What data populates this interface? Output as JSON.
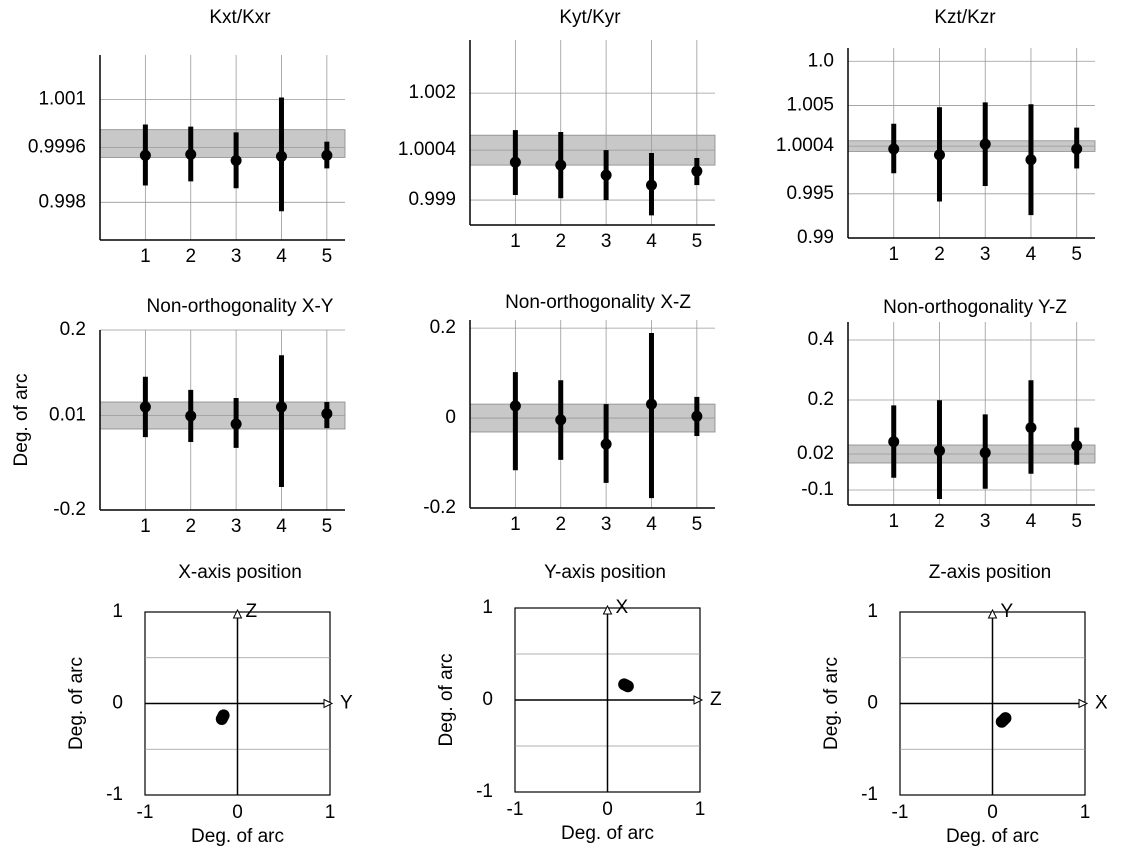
{
  "chart_data": [
    {
      "type": "errorbar",
      "title": "Kxt/Kxr",
      "x": [
        1,
        2,
        3,
        4,
        5
      ],
      "xlim": [
        0,
        5.4
      ],
      "xticks": [
        1,
        2,
        3,
        4,
        5
      ],
      "values": [
        0.99937,
        0.9994,
        0.99922,
        0.99934,
        0.99937
      ],
      "lower": [
        0.99849,
        0.99861,
        0.99841,
        0.99774,
        0.99899
      ],
      "upper": [
        1.00027,
        1.00021,
        1.00004,
        1.00106,
        0.99977
      ],
      "band": [
        0.99931,
        1.00012
      ],
      "ylim": [
        0.9969,
        1.0023
      ],
      "yticks": [
        0.998,
        0.9996,
        1.001
      ],
      "grid": true,
      "color": "#000000",
      "band_color": "#c8c8c8"
    },
    {
      "type": "errorbar",
      "title": "Kyt/Kyr",
      "x": [
        1,
        2,
        3,
        4,
        5
      ],
      "xlim": [
        0,
        5.4
      ],
      "xticks": [
        1,
        2,
        3,
        4,
        5
      ],
      "values": [
        1.00006,
        0.99998,
        0.9997,
        0.99942,
        0.99981
      ],
      "lower": [
        0.99914,
        0.99905,
        0.999,
        0.99857,
        0.99942
      ],
      "upper": [
        1.00096,
        1.00091,
        1.0004,
        1.00032,
        1.00018
      ],
      "band": [
        0.99998,
        1.00082
      ],
      "ylim": [
        0.9983,
        1.00349
      ],
      "yticks": [
        0.999,
        1.0004,
        1.002
      ],
      "grid": true,
      "color": "#000000",
      "band_color": "#c8c8c8"
    },
    {
      "type": "errorbar",
      "title": "Kzt/Kzr",
      "x": [
        1,
        2,
        3,
        4,
        5
      ],
      "xlim": [
        0,
        5.4
      ],
      "xticks": [
        1,
        2,
        3,
        4,
        5
      ],
      "values": [
        1.00007,
        0.99941,
        1.00062,
        0.99886,
        1.00007
      ],
      "lower": [
        0.99732,
        0.99413,
        0.99589,
        0.99259,
        0.99787
      ],
      "upper": [
        1.00293,
        1.0048,
        1.00535,
        1.00513,
        1.00249
      ],
      "band": [
        0.9998,
        1.001
      ],
      "ylim": [
        0.99,
        1.0115
      ],
      "yticks": [
        0.99,
        0.995,
        1.0004,
        1.005,
        {
          "value": 1.01,
          "label": "1.0"
        }
      ],
      "grid": true,
      "color": "#000000",
      "band_color": "#c8c8c8"
    },
    {
      "type": "errorbar",
      "title": "Non-orthogonality X-Y",
      "ylabel": "Deg. of arc",
      "x": [
        1,
        2,
        3,
        4,
        5
      ],
      "xlim": [
        0,
        5.4
      ],
      "xticks": [
        1,
        2,
        3,
        4,
        5
      ],
      "values": [
        0.029,
        0.009,
        -0.009,
        0.029,
        0.014
      ],
      "lower": [
        -0.038,
        -0.049,
        -0.062,
        -0.149,
        -0.018
      ],
      "upper": [
        0.096,
        0.067,
        0.049,
        0.144,
        0.04
      ],
      "band": [
        -0.02,
        0.04
      ],
      "ylim": [
        -0.2,
        0.2
      ],
      "yticks": [
        -0.2,
        0.01,
        0.2
      ],
      "grid": true,
      "color": "#000000",
      "band_color": "#c8c8c8"
    },
    {
      "type": "errorbar",
      "title": "Non-orthogonality X-Z",
      "x": [
        1,
        2,
        3,
        4,
        5
      ],
      "xlim": [
        0,
        5.4
      ],
      "xticks": [
        1,
        2,
        3,
        4,
        5
      ],
      "values": [
        0.027,
        -0.004,
        -0.058,
        0.031,
        0.004
      ],
      "lower": [
        -0.116,
        -0.093,
        -0.144,
        -0.178,
        -0.04
      ],
      "upper": [
        0.102,
        0.084,
        0.031,
        0.189,
        0.047
      ],
      "band": [
        -0.031,
        0.031
      ],
      "ylim": [
        -0.2,
        0.218
      ],
      "yticks": [
        -0.2,
        0,
        0.2
      ],
      "grid": true,
      "color": "#000000",
      "band_color": "#c8c8c8"
    },
    {
      "type": "errorbar",
      "title": "Non-orthogonality Y-Z",
      "x": [
        1,
        2,
        3,
        4,
        5
      ],
      "xlim": [
        0,
        5.4
      ],
      "xticks": [
        1,
        2,
        3,
        4,
        5
      ],
      "values": [
        0.061,
        0.031,
        0.024,
        0.108,
        0.048
      ],
      "lower": [
        -0.059,
        -0.13,
        -0.096,
        -0.046,
        -0.016
      ],
      "upper": [
        0.182,
        0.199,
        0.152,
        0.266,
        0.108
      ],
      "band": [
        -0.01,
        0.05
      ],
      "ylim": [
        -0.15,
        0.46
      ],
      "yticks": [
        -0.1,
        0.02,
        0.2,
        0.4
      ],
      "grid": true,
      "color": "#000000",
      "band_color": "#c8c8c8"
    },
    {
      "type": "scatter",
      "title": "X-axis position",
      "xlabel": "Deg. of arc",
      "ylabel": "Deg. of arc",
      "vertical_axis_name": "Z",
      "horizontal_axis_name": "Y",
      "x": [
        -0.17,
        -0.15,
        -0.16
      ],
      "y": [
        -0.17,
        -0.13,
        -0.15
      ],
      "xlim": [
        -1,
        1
      ],
      "ylim": [
        -1,
        1
      ],
      "xticks": [
        -1,
        0,
        1
      ],
      "yticks": [
        -1,
        0,
        1
      ],
      "minor_yticks": [
        -0.5,
        0.5
      ],
      "grid": true,
      "color": "#000000"
    },
    {
      "type": "scatter",
      "title": "Y-axis position",
      "xlabel": "Deg. of arc",
      "ylabel": "Deg. of arc",
      "vertical_axis_name": "X",
      "horizontal_axis_name": "Z",
      "x": [
        0.18,
        0.22,
        0.2
      ],
      "y": [
        0.17,
        0.15,
        0.16
      ],
      "xlim": [
        -1,
        1
      ],
      "ylim": [
        -1,
        1
      ],
      "xticks": [
        -1,
        0,
        1
      ],
      "yticks": [
        -1,
        0,
        1
      ],
      "minor_yticks": [
        -0.5,
        0.5
      ],
      "grid": true,
      "color": "#000000"
    },
    {
      "type": "scatter",
      "title": "Z-axis position",
      "xlabel": "Deg. of arc",
      "ylabel": "Deg. of arc",
      "vertical_axis_name": "Y",
      "horizontal_axis_name": "X",
      "x": [
        0.1,
        0.14,
        0.12
      ],
      "y": [
        -0.2,
        -0.16,
        -0.18
      ],
      "xlim": [
        -1,
        1
      ],
      "ylim": [
        -1,
        1
      ],
      "xticks": [
        -1,
        0,
        1
      ],
      "yticks": [
        -1,
        0,
        1
      ],
      "minor_yticks": [
        -0.5,
        0.5
      ],
      "grid": true,
      "color": "#000000"
    }
  ]
}
